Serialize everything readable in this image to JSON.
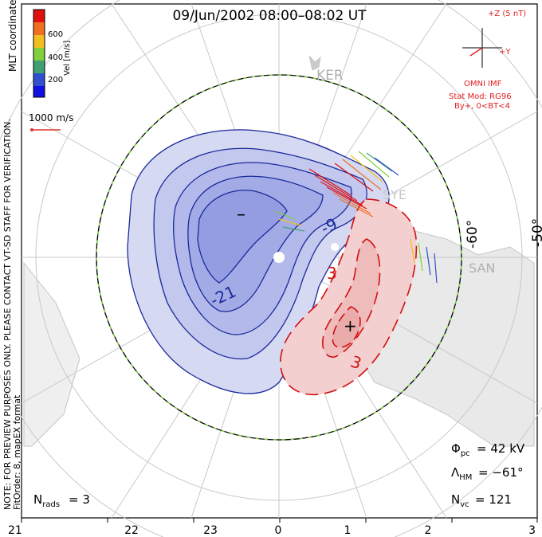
{
  "title": "09/Jun/2002 08:00–08:02 UT",
  "vertical_note_1": "NOTE: FOR PREVIEW PURPOSES ONLY. PLEASE CONTACT VT-SD STAFF FOR VERIFICATION.",
  "vertical_note_2": "FitOrder: 8, mapEX format",
  "colorbar": {
    "label": "Vel [m/s]",
    "tick_labels": [
      "600",
      "400",
      "200"
    ],
    "colors": [
      "#e01010",
      "#f07020",
      "#f0c020",
      "#80d040",
      "#40a070",
      "#3050d0",
      "#1010e0"
    ]
  },
  "coord_label": "MLT coordinates",
  "velocity_scale": {
    "label": "1000 m/s",
    "color": "#e03030"
  },
  "imf": {
    "z_label": "+Z (5 nT)",
    "y_label": "+Y",
    "omni_label": "OMNI IMF",
    "model_label": "Stat Mod: RG96",
    "condition_label": "By+, 0<BT<4",
    "color": "#e02020"
  },
  "stations": [
    "KER",
    "SYE",
    "SAN"
  ],
  "lat_labels": [
    "-60°",
    "-50°"
  ],
  "contour_labels": [
    "-21",
    "-9",
    "3",
    "3"
  ],
  "extrema": {
    "min_marker": "–",
    "max_marker": "+"
  },
  "stats": {
    "phi_pc": "= 42 kV",
    "lambda_hm": "= −61°",
    "n_vc": "= 121",
    "n_rads": "= 3"
  },
  "mlt_axis": [
    "21",
    "22",
    "23",
    "0",
    "1",
    "2",
    "3"
  ],
  "colors": {
    "negative_fill": "#c8cdf0",
    "positive_fill": "#f2c8c8",
    "negative_line": "#1a2a9a",
    "positive_line": "#d01010",
    "boundary_green": "#80d040"
  }
}
